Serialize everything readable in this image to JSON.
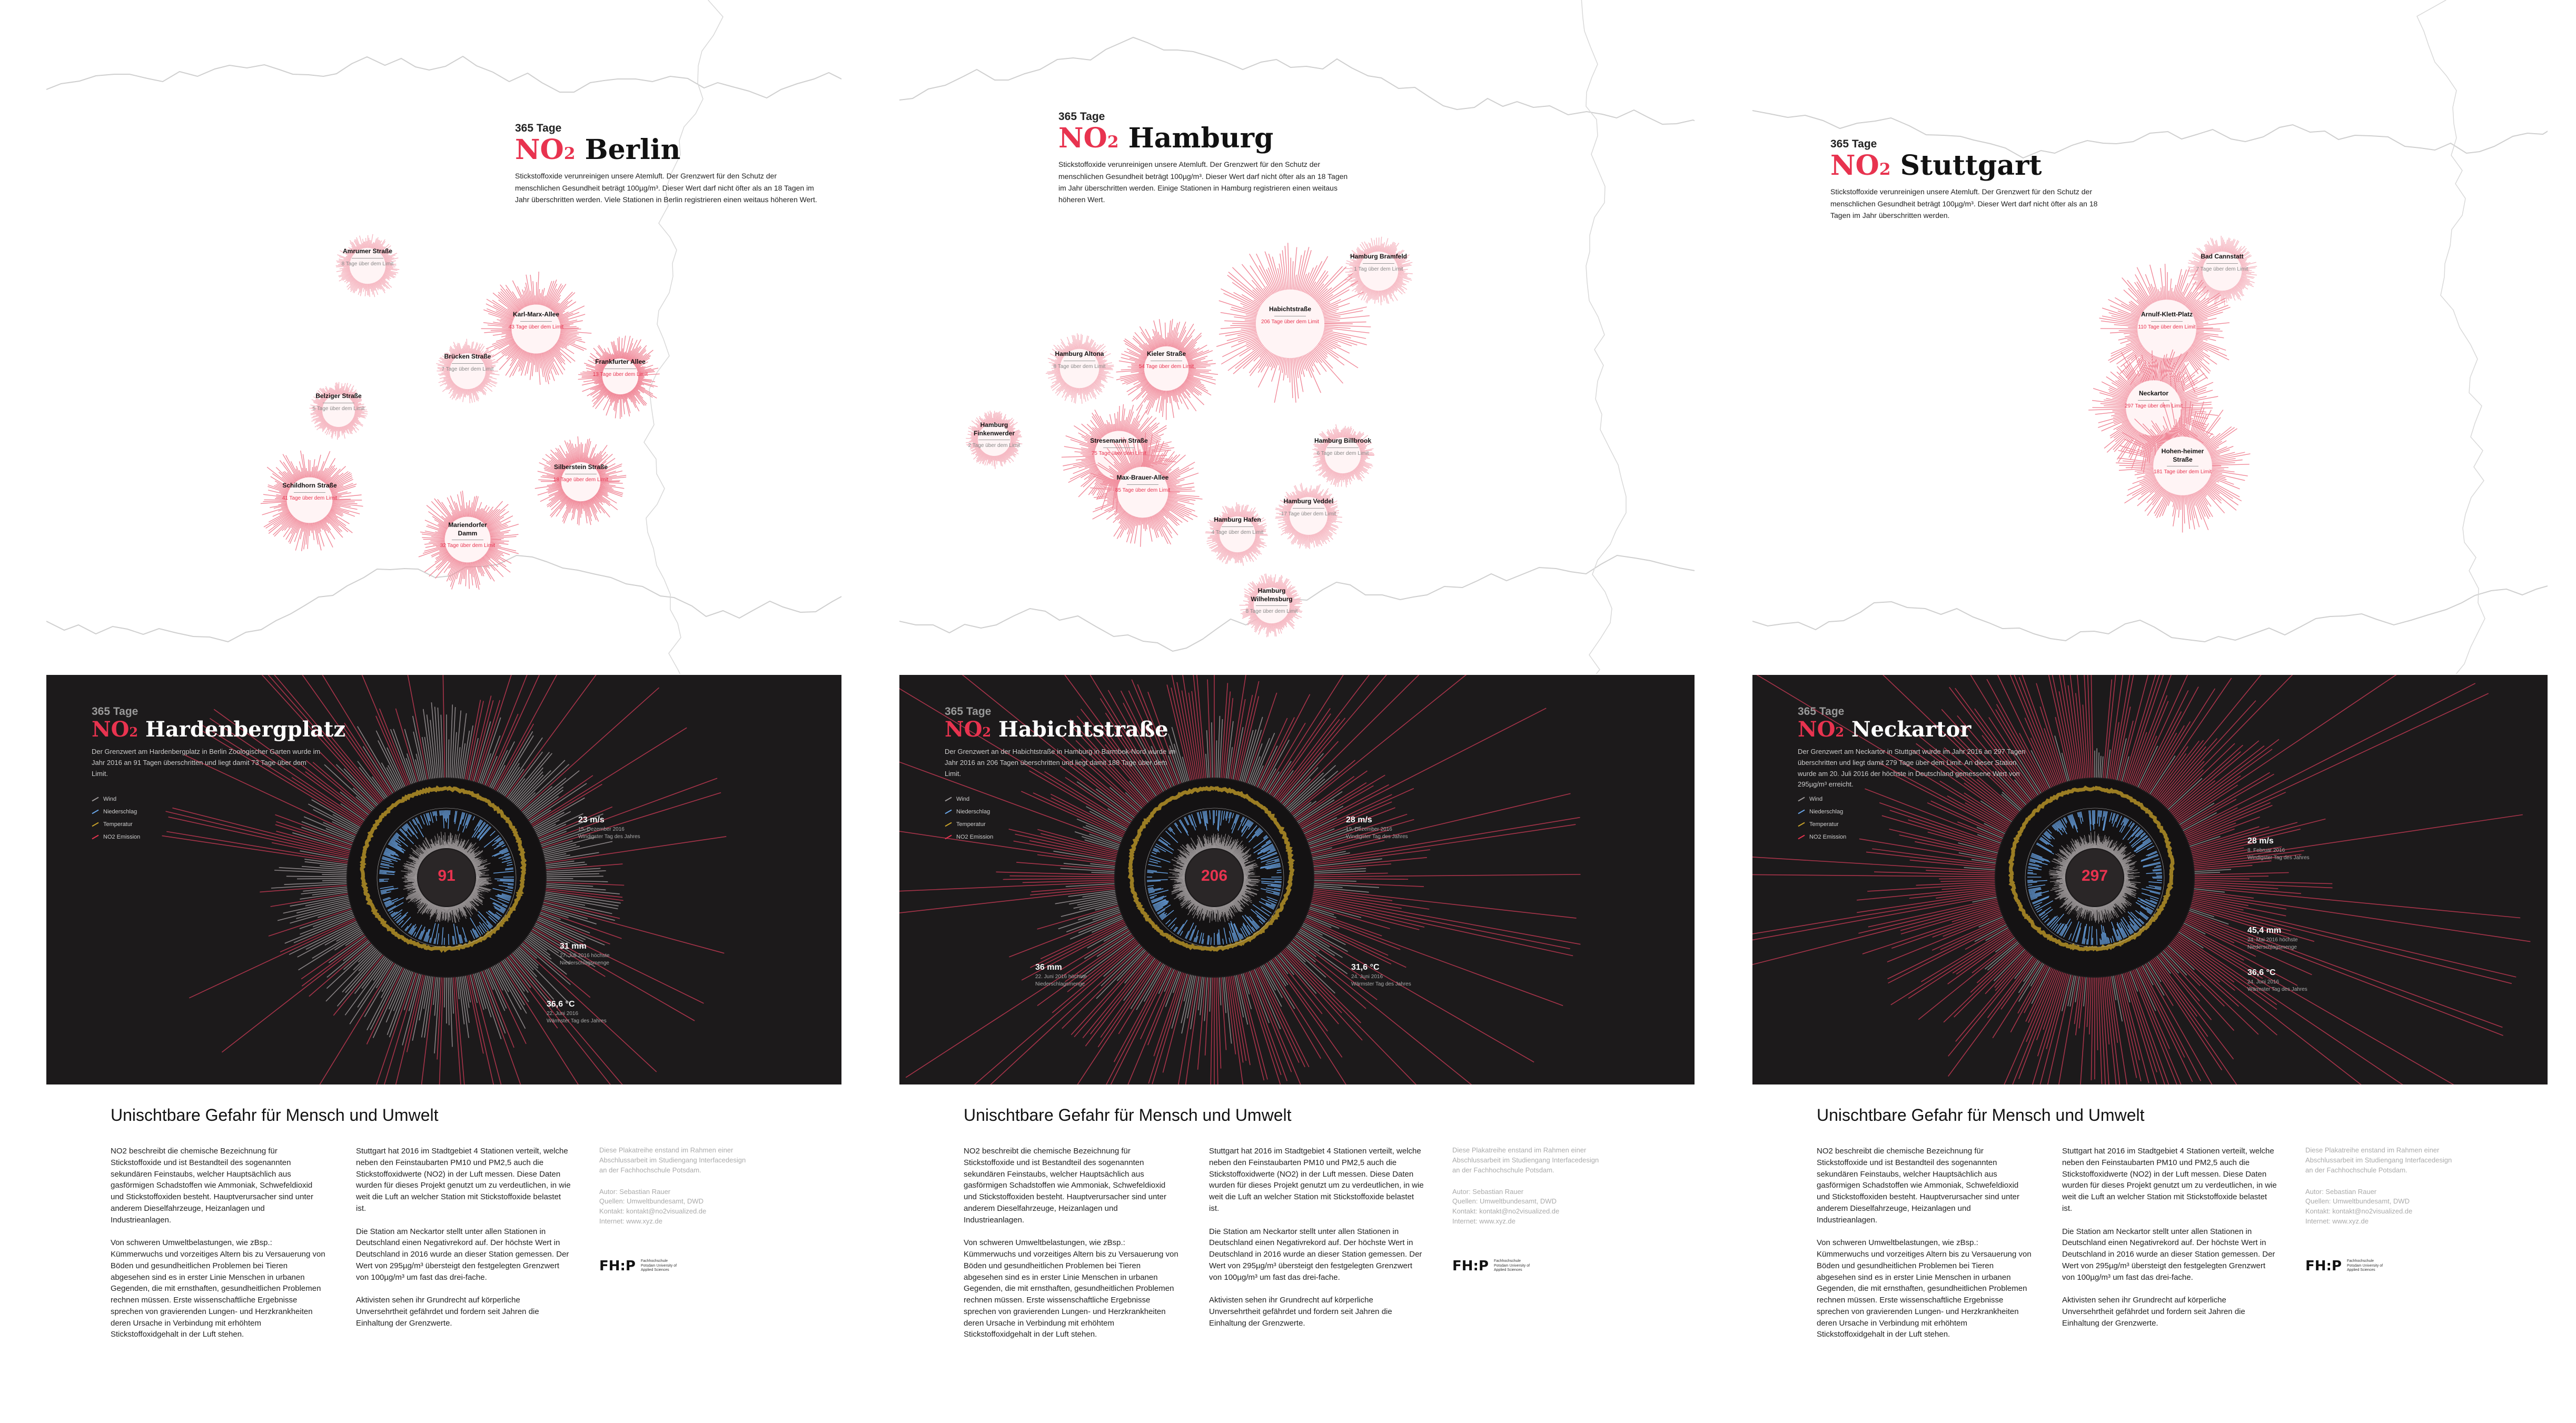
{
  "shared": {
    "kicker": "365 Tage",
    "no2_prefix": "NO",
    "no2_sub": "2",
    "headline": "Unischtbare Gefahr für Mensch und Umwelt",
    "col1": [
      "NO2 beschreibt die chemische Bezeichnung für Stickstoffoxide und ist Bestandteil des sogenannten sekundären Feinstaubs, welcher Hauptsächlich aus gasförmigen Schadstoffen wie Ammoniak, Schwefeldioxid und Stickstoffoxiden besteht. Hauptverursacher sind unter anderem Dieselfahrzeuge, Heizanlagen und Industrieanlagen.",
      "Von schweren Umweltbelastungen, wie zBsp.: Kümmerwuchs und vorzeitiges Altern bis zu Versauerung von Böden und gesundheitlichen Problemen bei Tieren abgesehen sind es in erster Linie Menschen in urbanen Gegenden, die mit ernsthaften, gesundheitlichen Problemen rechnen müssen. Erste wissenschaftliche Ergebnisse sprechen von gravierenden Lungen- und Herzkrankheiten deren Ursache in Verbindung mit erhöhtem Stickstoffoxidgehalt in der Luft stehen."
    ],
    "col2": [
      "Stuttgart hat 2016 im Stadtgebiet 4 Stationen verteilt, welche neben den Feinstaubarten PM10 und PM2,5 auch die Stickstoffoxidwerte (NO2) in der Luft messen. Diese Daten wurden für dieses Projekt genutzt um zu verdeutlichen, in wie weit die Luft an welcher Station mit Stickstoffoxide belastet ist.",
      "Die Station am Neckartor stellt unter allen Stationen in Deutschland einen Negativrekord auf. Der höchste Wert in Deutschland in 2016 wurde an dieser Station gemessen. Der Wert von 295µg/m³ übersteigt den festgelegten Grenzwert von 100µg/m³ um fast das drei-fache.",
      "Aktivisten sehen ihr Grundrecht auf körperliche Unversehrtheit gefährdet und fordern seit Jahren die Einhaltung der Grenzwerte."
    ],
    "col3": [
      "Diese Plakatreihe enstand im Rahmen einer Abschlussarbeit im Studiengang Interfacedesign an der Fachhochschule Potsdam.",
      "Autor: Sebastian Rauer\nQuellen: Umweltbundesamt, DWD\nKontakt: kontakt@no2visualized.de\nInternet: www.xyz.de"
    ],
    "logo_text": "FH:P",
    "logo_sub": "Fachhochschule Potsdam University of Applied Sciences",
    "legend": [
      "Wind",
      "Niederschlag",
      "Temperatur",
      "NO2 Emission"
    ],
    "colors": {
      "accent": "#e8334f",
      "dark_bg": "#1c1a1b",
      "rain": "#6aa6e8",
      "temp": "#c8a22a"
    }
  },
  "posters": [
    {
      "city": "Berlin",
      "intro": "Stickstoffoxide verunreinigen unsere Atemluft. Der Grenzwert für den Schutz der menschlichen Gesundheit beträgt 100µg/m³. Dieser Wert darf nicht öfter als an 18 Tagen im Jahr überschritten werden. Viele Stationen in Berlin registrieren einen weitaus höheren Wert.",
      "stations": [
        {
          "name": "Amrumer Straße",
          "val": "8 Tage über dem Limit",
          "red": false
        },
        {
          "name": "Karl-Marx-Allee",
          "val": "43 Tage über dem Limit",
          "red": true
        },
        {
          "name": "Brücken Straße",
          "val": "7 Tage über dem Limit",
          "red": false
        },
        {
          "name": "Frankfurter Allee",
          "val": "13 Tage über dem Limit",
          "red": true
        },
        {
          "name": "Belziger Straße",
          "val": "5 Tage über dem Limit",
          "red": false
        },
        {
          "name": "Silberstein Straße",
          "val": "18 Tage über dem Limit",
          "red": true
        },
        {
          "name": "Schildhorn Straße",
          "val": "41 Tage über dem Limit",
          "red": true
        },
        {
          "name": "Mariendorfer Damm",
          "val": "32 Tage über dem Limit",
          "red": true
        }
      ],
      "station": "Hardenbergplatz",
      "dark_intro": "Der Grenzwert am Hardenbergplatz in Berlin Zoologischer Garten wurde im Jahr 2016 an 91 Tagen überschritten und liegt damit 73 Tage über dem Limit.",
      "center": "91",
      "annots": [
        {
          "big": "23 m/s",
          "small": "15. Dezember 2016\nWindigster Tag des Jahres"
        },
        {
          "big": "31 mm",
          "small": "27. Juli 2016 höchste\nNiederschlagsmenge"
        },
        {
          "big": "36,6 °C",
          "small": "22. Juni 2016\nWärmster Tag des Jahres"
        }
      ]
    },
    {
      "city": "Hamburg",
      "intro": "Stickstoffoxide verunreinigen unsere Atemluft. Der Grenzwert für den Schutz der menschlichen Gesundheit beträgt 100µg/m³. Dieser Wert darf nicht öfter als an 18 Tagen im Jahr überschritten werden. Einige Stationen in Hamburg registrieren einen weitaus höheren Wert.",
      "stations": [
        {
          "name": "Hamburg Bramfeld",
          "val": "1 Tag über dem Limit",
          "red": false
        },
        {
          "name": "Habichtstraße",
          "val": "206 Tage über dem Limit",
          "red": true
        },
        {
          "name": "Hamburg Altona",
          "val": "8 Tage über dem Limit",
          "red": false
        },
        {
          "name": "Kieler Straße",
          "val": "54 Tage über dem Limit",
          "red": true
        },
        {
          "name": "Hamburg Finkenwerder",
          "val": "2 Tage über dem Limit",
          "red": false
        },
        {
          "name": "Stresemann Straße",
          "val": "75 Tage über dem Limit",
          "red": true
        },
        {
          "name": "Hamburg Billbrook",
          "val": "6 Tage über dem Limit",
          "red": false
        },
        {
          "name": "Max-Brauer-Allee",
          "val": "85 Tage über dem Limit",
          "red": true
        },
        {
          "name": "Hamburg Veddel",
          "val": "17 Tage über dem Limit",
          "red": false
        },
        {
          "name": "Hamburg Hafen",
          "val": "4 Tage über dem Limit",
          "red": false
        },
        {
          "name": "Hamburg Wilhelmsburg",
          "val": "8 Tage über dem Limit",
          "red": false
        }
      ],
      "station": "Habichtstraße",
      "dark_intro": "Der Grenzwert an der Habichtstraße in Hamburg in Barmbek-Nord wurde im Jahr 2016 an 206 Tagen überschritten und liegt damit 188 Tage über dem Limit.",
      "center": "206",
      "annots": [
        {
          "big": "28 m/s",
          "small": "19. Dezember 2016\nWindigster Tag des Jahres"
        },
        {
          "big": "36 mm",
          "small": "22. Juni 2016 höchste\nNiederschlagsmenge"
        },
        {
          "big": "31,6 °C",
          "small": "24. Juni 2016\nWärmster Tag des Jahres"
        }
      ]
    },
    {
      "city": "Stuttgart",
      "intro": "Stickstoffoxide verunreinigen unsere Atemluft. Der Grenzwert für den Schutz der menschlichen Gesundheit beträgt 100µg/m³. Dieser Wert darf nicht öfter als an 18 Tagen im Jahr überschritten werden.",
      "stations": [
        {
          "name": "Bad Cannstatt",
          "val": "7 Tage über dem Limit",
          "red": false
        },
        {
          "name": "Arnulf-Klett-Platz",
          "val": "110 Tage über dem Limit",
          "red": true
        },
        {
          "name": "Neckartor",
          "val": "297 Tage über dem Limit",
          "red": true
        },
        {
          "name": "Hohen-heimer Straße",
          "val": "181 Tage über dem Limit",
          "red": true
        }
      ],
      "station": "Neckartor",
      "dark_intro": "Der Grenzwert am Neckartor in Stuttgart wurde im Jahr 2016 an 297 Tagen überschritten und liegt damit 279 Tage über dem Limit. An dieser Station wurde am 20. Juli 2016 der höchste in Deutschland gemessene Wert von 295µg/m³ erreicht.",
      "center": "297",
      "annots": [
        {
          "big": "28 m/s",
          "small": "8. Februar 2016\nWindigster Tag des Jahres"
        },
        {
          "big": "45,4 mm",
          "small": "24. Mai 2016 höchste\nNiederschlagsmenge"
        },
        {
          "big": "36,6 °C",
          "small": "24. Juni 2016\nWärmster Tag des Jahres"
        }
      ]
    }
  ]
}
